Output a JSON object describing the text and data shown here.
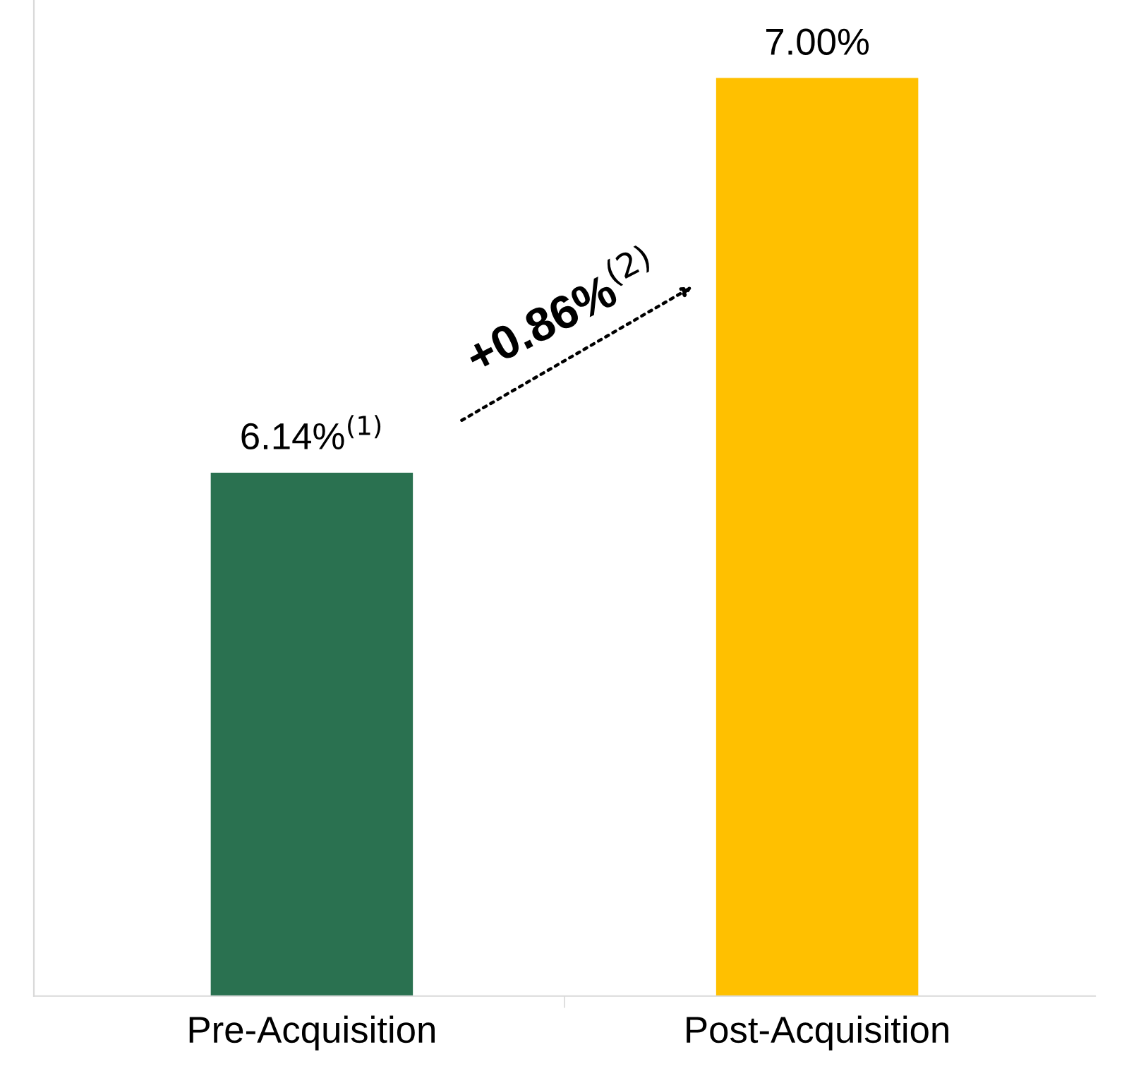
{
  "chart_data": {
    "type": "bar",
    "categories": [
      "Pre-Acquisition",
      "Post-Acquisition"
    ],
    "values": [
      6.14,
      7.0
    ],
    "colors": [
      "#2a7150",
      "#ffc000"
    ],
    "value_labels": [
      "6.14%$^{(1)}$",
      "7.00%"
    ],
    "ylim": [
      5,
      7.17
    ],
    "tick_labels": "x",
    "grid": false,
    "legend": false,
    "annotations": [
      "+0.86%$^{(2)}$"
    ]
  }
}
